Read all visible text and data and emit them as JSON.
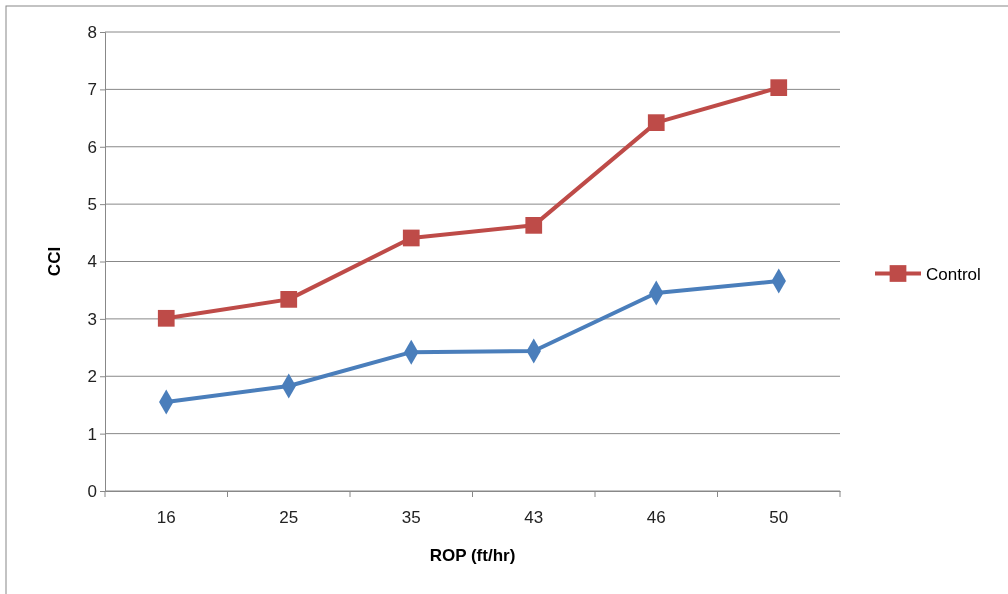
{
  "chart_data": {
    "type": "line",
    "xlabel": "ROP (ft/hr)",
    "ylabel": "CCI",
    "categories": [
      "16",
      "25",
      "35",
      "43",
      "46",
      "50"
    ],
    "series": [
      {
        "name": "Control",
        "color": "#be4b48",
        "marker": "square",
        "values": [
          3.01,
          3.34,
          4.41,
          4.63,
          6.42,
          7.03
        ]
      },
      {
        "color": "#4a7ebb",
        "marker": "diamond",
        "values": [
          1.55,
          1.83,
          2.42,
          2.44,
          3.45,
          3.66
        ]
      }
    ],
    "ylim": [
      0,
      8
    ],
    "yticks": [
      0,
      1,
      2,
      3,
      4,
      5,
      6,
      7,
      8
    ],
    "grid": "y",
    "legend": "right"
  }
}
